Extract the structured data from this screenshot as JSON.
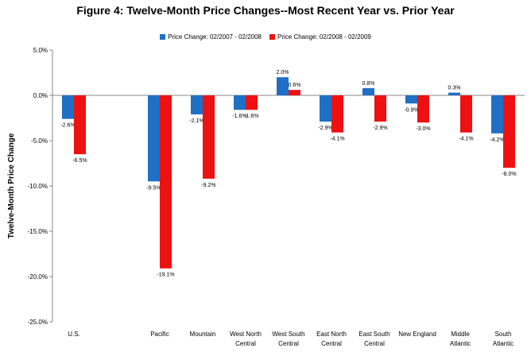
{
  "chart_data": {
    "type": "bar",
    "title": "Figure 4: Twelve-Month Price Changes--Most Recent Year vs. Prior Year",
    "xlabel": "",
    "ylabel": "Twelve-Month Price Change",
    "ylim": [
      -25,
      5
    ],
    "yticks": [
      "5.0%",
      "0.0%",
      "-5.0%",
      "-10.0%",
      "-15.0%",
      "-20.0%",
      "-25.0%"
    ],
    "ytick_values": [
      5,
      0,
      -5,
      -10,
      -15,
      -20,
      -25
    ],
    "grid": false,
    "legend_position": "top-center",
    "categories": [
      [
        "U.S."
      ],
      [
        ""
      ],
      [
        "Pacific"
      ],
      [
        "Mountain"
      ],
      [
        "West North",
        "Central"
      ],
      [
        "West South",
        "Central"
      ],
      [
        "East North",
        "Central"
      ],
      [
        "East South",
        "Central"
      ],
      [
        "New England"
      ],
      [
        "Middle",
        "Atlantic"
      ],
      [
        "South",
        "Atlantic"
      ]
    ],
    "series": [
      {
        "name": "Price Change:  02/2007 - 02/2008",
        "color": "#1f6fc4",
        "values": [
          -2.6,
          null,
          -9.5,
          -2.1,
          -1.6,
          2.0,
          -2.9,
          0.8,
          -0.9,
          0.3,
          -4.2
        ],
        "labels": [
          "-2.6%",
          "",
          "-9.5%",
          "-2.1%",
          "-1.6%",
          "2.0%",
          "-2.9%",
          "0.8%",
          "-0.9%",
          "0.3%",
          "-4.2%"
        ]
      },
      {
        "name": "Price Change:  02/2008 - 02/2009",
        "color": "#ee1111",
        "values": [
          -6.5,
          null,
          -19.1,
          -9.2,
          -1.6,
          0.6,
          -4.1,
          -2.9,
          -3.0,
          -4.1,
          -8.0
        ],
        "labels": [
          "-6.5%",
          "",
          "-19.1%",
          "-9.2%",
          "-1.6%",
          "0.6%",
          "-4.1%",
          "-2.9%",
          "-3.0%",
          "-4.1%",
          "-8.0%"
        ]
      }
    ]
  }
}
